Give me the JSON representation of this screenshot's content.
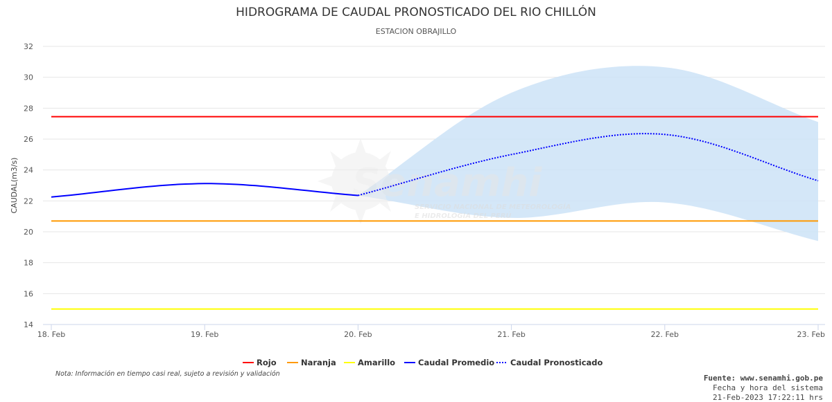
{
  "chart_data": {
    "type": "line",
    "title": "HIDROGRAMA DE CAUDAL PRONOSTICADO DEL RIO CHILLÓN",
    "subtitle": "ESTACION OBRAJILLO",
    "ylabel": "CAUDAL(m3/s)",
    "xlabel": "",
    "x_ticks": [
      "18. Feb",
      "19. Feb",
      "20. Feb",
      "21. Feb",
      "22. Feb",
      "23. Feb"
    ],
    "y_ticks": [
      14,
      16,
      18,
      20,
      22,
      24,
      26,
      28,
      30,
      32
    ],
    "ylim": [
      14,
      32
    ],
    "xlim_days": [
      18,
      23
    ],
    "grid": true,
    "legend_position": "bottom-center",
    "thresholds": [
      {
        "name": "Rojo",
        "value": 27.45,
        "color": "#ff0000"
      },
      {
        "name": "Naranja",
        "value": 20.7,
        "color": "#ff9900"
      },
      {
        "name": "Amarillo",
        "value": 15.0,
        "color": "#ffff00"
      }
    ],
    "series": [
      {
        "name": "Caudal Promedio",
        "color": "#0000ff",
        "style": "solid",
        "x": [
          18,
          19,
          20
        ],
        "y": [
          22.25,
          23.12,
          22.35
        ]
      },
      {
        "name": "Caudal Pronosticado",
        "color": "#0000ff",
        "style": "dotted",
        "x": [
          20,
          21,
          22,
          23
        ],
        "y": [
          22.35,
          25.0,
          26.3,
          23.3
        ]
      }
    ],
    "forecast_band": {
      "color": "#cde3f7",
      "x": [
        20,
        21,
        22,
        23
      ],
      "lower": [
        22.35,
        20.9,
        21.9,
        19.4
      ],
      "upper": [
        22.35,
        29.0,
        30.65,
        27.1
      ]
    }
  },
  "watermark": {
    "brand": "Senamhi",
    "line1": "SERVICIO NACIONAL DE METEOROLOGÍA",
    "line2": "E HIDROLOGÍA DEL PERÚ"
  },
  "footer": {
    "note": "Nota: Información en tiempo casi real, sujeto a revisión y validación",
    "source": "Fuente: www.senamhi.gob.pe",
    "datetime_label": "Fecha y hora del sistema",
    "datetime_value": "21-Feb-2023 17:22:11 hrs"
  }
}
